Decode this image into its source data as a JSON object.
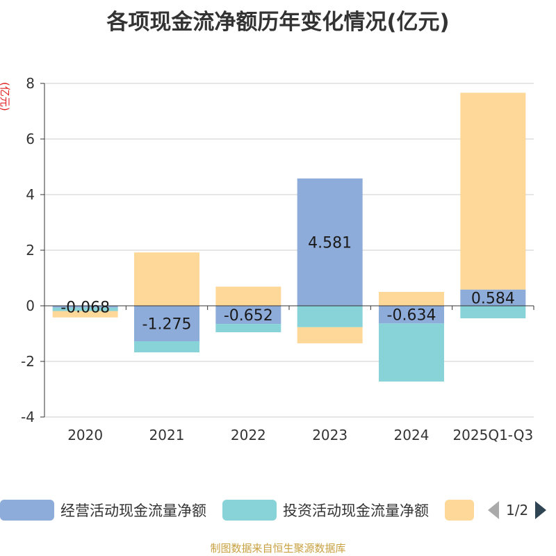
{
  "title": "各项现金流净额历年变化情况(亿元)",
  "unit_label": "(亿元)",
  "footer": "制图数据来自恒生聚源数据库",
  "legend": {
    "items": [
      {
        "label": "经营活动现金流量净额",
        "color": "#8eacd9"
      },
      {
        "label": "投资活动现金流量净额",
        "color": "#88d3d8"
      },
      {
        "label": "",
        "color": "#fdd898"
      }
    ],
    "page": "1/2"
  },
  "colors": {
    "grid": "#cccccc",
    "axis": "#333333"
  },
  "chart_data": {
    "type": "bar",
    "stacked": true,
    "categories": [
      "2020",
      "2021",
      "2022",
      "2023",
      "2024",
      "2025Q1-Q3"
    ],
    "yticks": [
      -4,
      -2,
      0,
      2,
      4,
      6,
      8
    ],
    "ylim": [
      -4,
      8
    ],
    "series": [
      {
        "name": "经营活动现金流量净额",
        "color": "#8eacd9",
        "values": [
          -0.068,
          -1.275,
          -0.652,
          4.581,
          -0.634,
          0.584
        ],
        "labels": [
          "-0.068",
          "-1.275",
          "-0.652",
          "4.581",
          "-0.634",
          "0.584"
        ]
      },
      {
        "name": "投资活动现金流量净额",
        "color": "#88d3d8",
        "values": [
          -0.12,
          -0.4,
          -0.3,
          -0.77,
          -2.09,
          -0.45
        ]
      },
      {
        "name": "",
        "color": "#fdd898",
        "values": [
          -0.23,
          1.92,
          0.69,
          -0.58,
          0.5,
          7.08
        ]
      }
    ]
  }
}
